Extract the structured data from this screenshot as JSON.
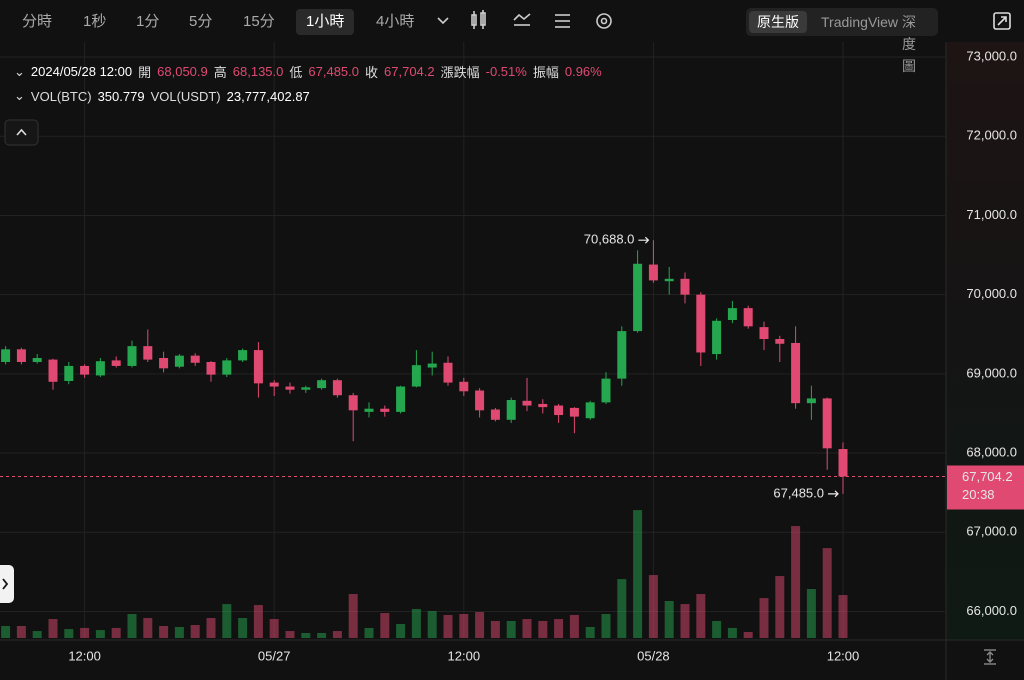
{
  "toolbar": {
    "intervals": [
      "分時",
      "1秒",
      "1分",
      "5分",
      "15分",
      "1小時",
      "4小時"
    ],
    "views": [
      "原生版",
      "TradingView",
      "深度圖"
    ]
  },
  "chart_data": {
    "type": "candlestick",
    "info": {
      "time": "2024/05/28 12:00",
      "open_label": "開",
      "open": "68,050.9",
      "high_label": "高",
      "high": "68,135.0",
      "low_label": "低",
      "low": "67,485.0",
      "close_label": "收",
      "close": "67,704.2",
      "change_label": "漲跌幅",
      "change": "-0.51%",
      "amplitude_label": "振幅",
      "amplitude": "0.96%"
    },
    "volume_info": {
      "btc_label": "VOL(BTC)",
      "btc": "350.779",
      "usdt_label": "VOL(USDT)",
      "usdt": "23,777,402.87"
    },
    "categories": [
      null,
      null,
      null,
      null,
      null,
      "12:00",
      null,
      null,
      null,
      null,
      null,
      null,
      null,
      null,
      null,
      null,
      null,
      "05/27",
      null,
      null,
      null,
      null,
      null,
      null,
      null,
      null,
      null,
      null,
      null,
      "12:00",
      null,
      null,
      null,
      null,
      null,
      null,
      null,
      null,
      null,
      null,
      null,
      "05/28",
      null,
      null,
      null,
      null,
      null,
      null,
      null,
      null,
      null,
      null,
      null,
      "12:00"
    ],
    "open": [
      69150,
      69310,
      69150,
      69180,
      68910,
      69100,
      68980,
      69170,
      69100,
      69350,
      69200,
      69090,
      69230,
      69150,
      68990,
      69170,
      69300,
      68890,
      68840,
      68800,
      68820,
      68920,
      68730,
      68520,
      68560,
      68520,
      68840,
      69080,
      69140,
      68900,
      68790,
      68550,
      68420,
      68660,
      68620,
      68600,
      68570,
      68440,
      68640,
      68940,
      69540,
      70380,
      70170,
      70200,
      70000,
      69250,
      69680,
      69830,
      69590,
      69440,
      69390,
      68630,
      68690,
      68050.9
    ],
    "high": [
      69350,
      69330,
      69250,
      69190,
      69150,
      69120,
      69200,
      69220,
      69420,
      69560,
      69280,
      69250,
      69260,
      69160,
      69200,
      69320,
      69400,
      68920,
      68890,
      68850,
      68940,
      68940,
      68760,
      68640,
      68600,
      68850,
      69300,
      69280,
      69220,
      68950,
      68820,
      68570,
      68700,
      68950,
      68680,
      68620,
      68580,
      68660,
      69020,
      69600,
      70560,
      70688,
      70350,
      70280,
      70030,
      69700,
      69920,
      69860,
      69660,
      69480,
      69600,
      68850,
      68700,
      68135.0
    ],
    "low": [
      69120,
      69120,
      69130,
      68800,
      68870,
      68950,
      68960,
      69080,
      69080,
      69150,
      69020,
      69070,
      69100,
      68900,
      68960,
      69150,
      68700,
      68720,
      68750,
      68760,
      68800,
      68700,
      68150,
      68450,
      68460,
      68500,
      68830,
      68980,
      68850,
      68720,
      68450,
      68400,
      68380,
      68530,
      68500,
      68380,
      68250,
      68420,
      68620,
      68850,
      69520,
      70150,
      70000,
      69890,
      69100,
      69180,
      69640,
      69570,
      69300,
      69150,
      68560,
      68420,
      67790,
      67485.0
    ],
    "close": [
      69310,
      69150,
      69200,
      68900,
      69100,
      68990,
      69160,
      69100,
      69350,
      69180,
      69070,
      69230,
      69140,
      68990,
      69170,
      69300,
      68880,
      68840,
      68800,
      68830,
      68920,
      68730,
      68540,
      68560,
      68520,
      68840,
      69110,
      69130,
      68890,
      68780,
      68540,
      68420,
      68670,
      68600,
      68580,
      68480,
      68460,
      68640,
      68940,
      69540,
      70390,
      70180,
      70200,
      70000,
      69270,
      69670,
      69830,
      69600,
      69440,
      69380,
      68630,
      68690,
      68060,
      67704.2
    ],
    "volume": [
      98,
      98,
      57,
      155,
      73,
      82,
      65,
      82,
      196,
      163,
      98,
      90,
      106,
      163,
      277,
      163,
      269,
      155,
      57,
      41,
      41,
      57,
      359,
      82,
      204,
      114,
      237,
      220,
      188,
      196,
      212,
      139,
      139,
      155,
      139,
      155,
      188,
      90,
      196,
      481,
      1044,
      514,
      302,
      277,
      359,
      139,
      82,
      49,
      326,
      506,
      914,
      400,
      734,
      350.779
    ],
    "ylim": [
      65665,
      73190
    ],
    "yticks": [
      {
        "value": 66000,
        "label": "66,000.0"
      },
      {
        "value": 67000,
        "label": "67,000.0"
      },
      {
        "value": 68000,
        "label": "68,000.0"
      },
      {
        "value": 69000,
        "label": "69,000.0"
      },
      {
        "value": 70000,
        "label": "70,000.0"
      },
      {
        "value": 71000,
        "label": "71,000.0"
      },
      {
        "value": 72000,
        "label": "72,000.0"
      },
      {
        "value": 73000,
        "label": "73,000.0"
      }
    ],
    "y2lim": [
      0,
      4865
    ],
    "high_label": "70,688.0",
    "low_label": "67,485.0",
    "last_price_label": "67,704.2",
    "countdown": "20:38",
    "up_color": "#25a750",
    "down_color": "#e04a72",
    "grid": true
  }
}
